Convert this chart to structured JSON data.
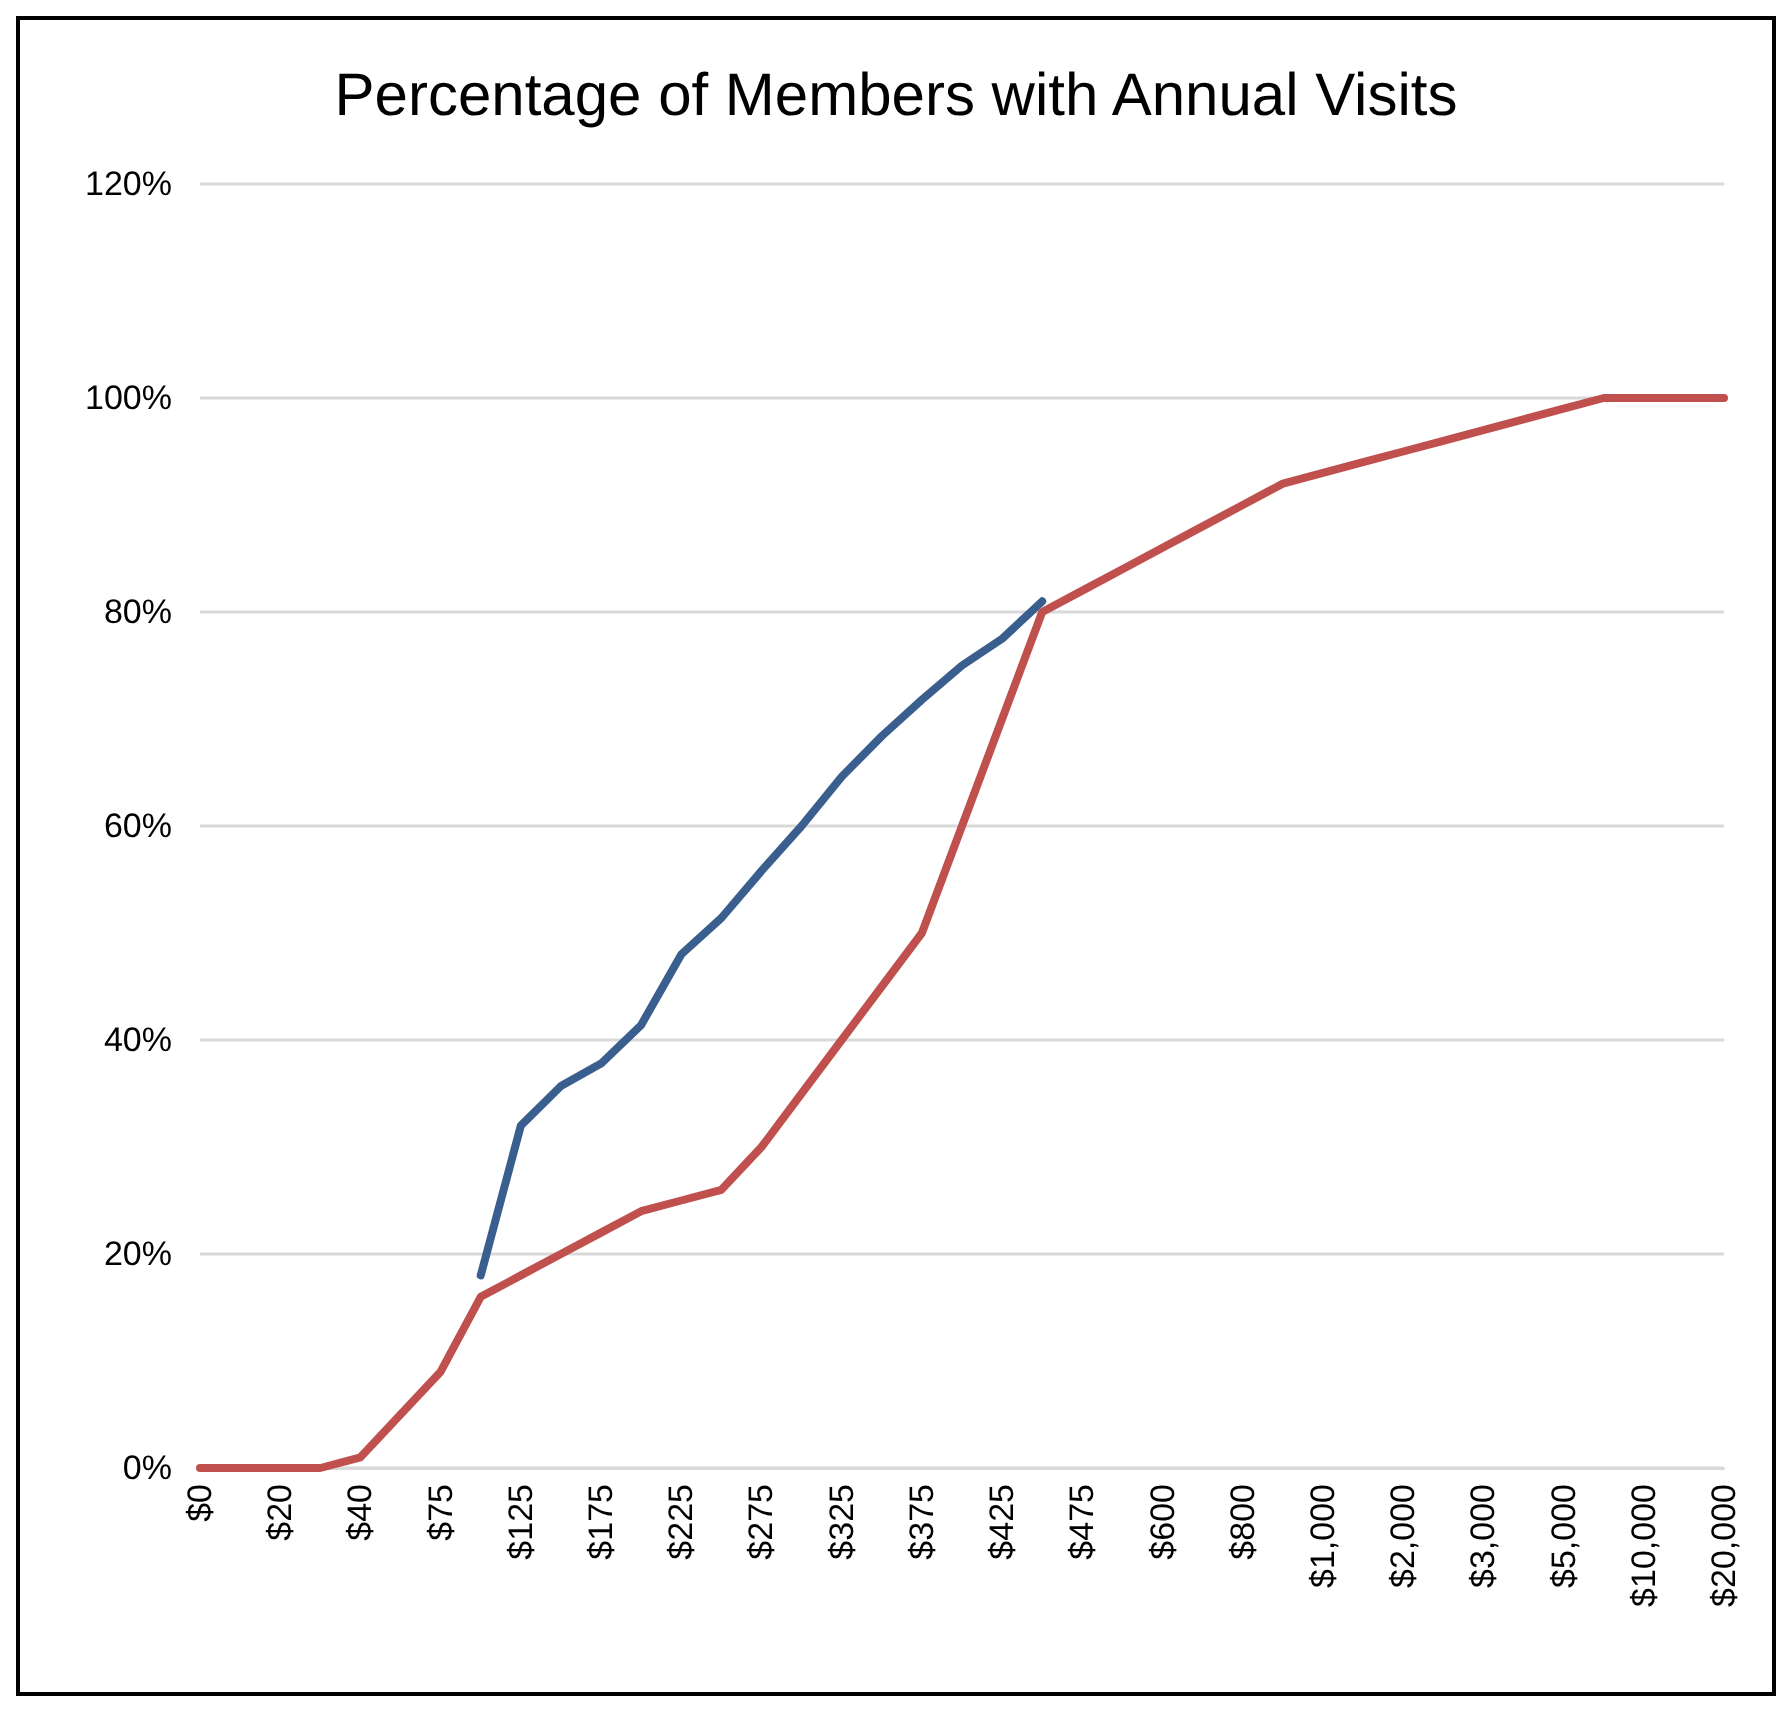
{
  "chart_data": {
    "type": "line",
    "title": "Percentage of Members with Annual Visits",
    "categories": [
      "$0",
      null,
      "$20",
      null,
      "$40",
      null,
      "$75",
      null,
      "$125",
      null,
      "$175",
      null,
      "$225",
      null,
      "$275",
      null,
      "$325",
      null,
      "$375",
      null,
      "$425",
      null,
      "$475",
      null,
      "$600",
      null,
      "$800",
      null,
      "$1,000",
      null,
      "$2,000",
      null,
      "$3,000",
      null,
      "$5,000",
      null,
      "$10,000",
      null,
      "$20,000"
    ],
    "series": [
      {
        "color": "#c0504d",
        "values": [
          0,
          0,
          0,
          0,
          1,
          5,
          9,
          16,
          18,
          20,
          22,
          24,
          25,
          26,
          30,
          35,
          40,
          45,
          50,
          60,
          70,
          80,
          82,
          84,
          86,
          88,
          90,
          92,
          93,
          94,
          95,
          96,
          97,
          98,
          99,
          100,
          100,
          100,
          100
        ]
      },
      {
        "color": "#3a5f8f",
        "values": [
          null,
          null,
          null,
          null,
          null,
          null,
          null,
          18,
          32,
          35.7,
          37.8,
          41.4,
          48,
          51.4,
          55.8,
          60,
          64.6,
          68.4,
          71.8,
          75,
          77.5,
          81,
          null,
          null,
          null,
          null,
          null,
          null,
          null,
          null,
          null,
          null,
          null,
          null,
          null,
          null,
          null,
          null,
          null
        ]
      }
    ],
    "ylim": [
      0,
      120
    ],
    "yticks": [
      {
        "value": 0,
        "label": "0%"
      },
      {
        "value": 20,
        "label": "20%"
      },
      {
        "value": 40,
        "label": "40%"
      },
      {
        "value": 60,
        "label": "60%"
      },
      {
        "value": 80,
        "label": "80%"
      },
      {
        "value": 100,
        "label": "100%"
      },
      {
        "value": 120,
        "label": "120%"
      }
    ],
    "grid": "y",
    "marker": "none",
    "line_style": "solid"
  }
}
